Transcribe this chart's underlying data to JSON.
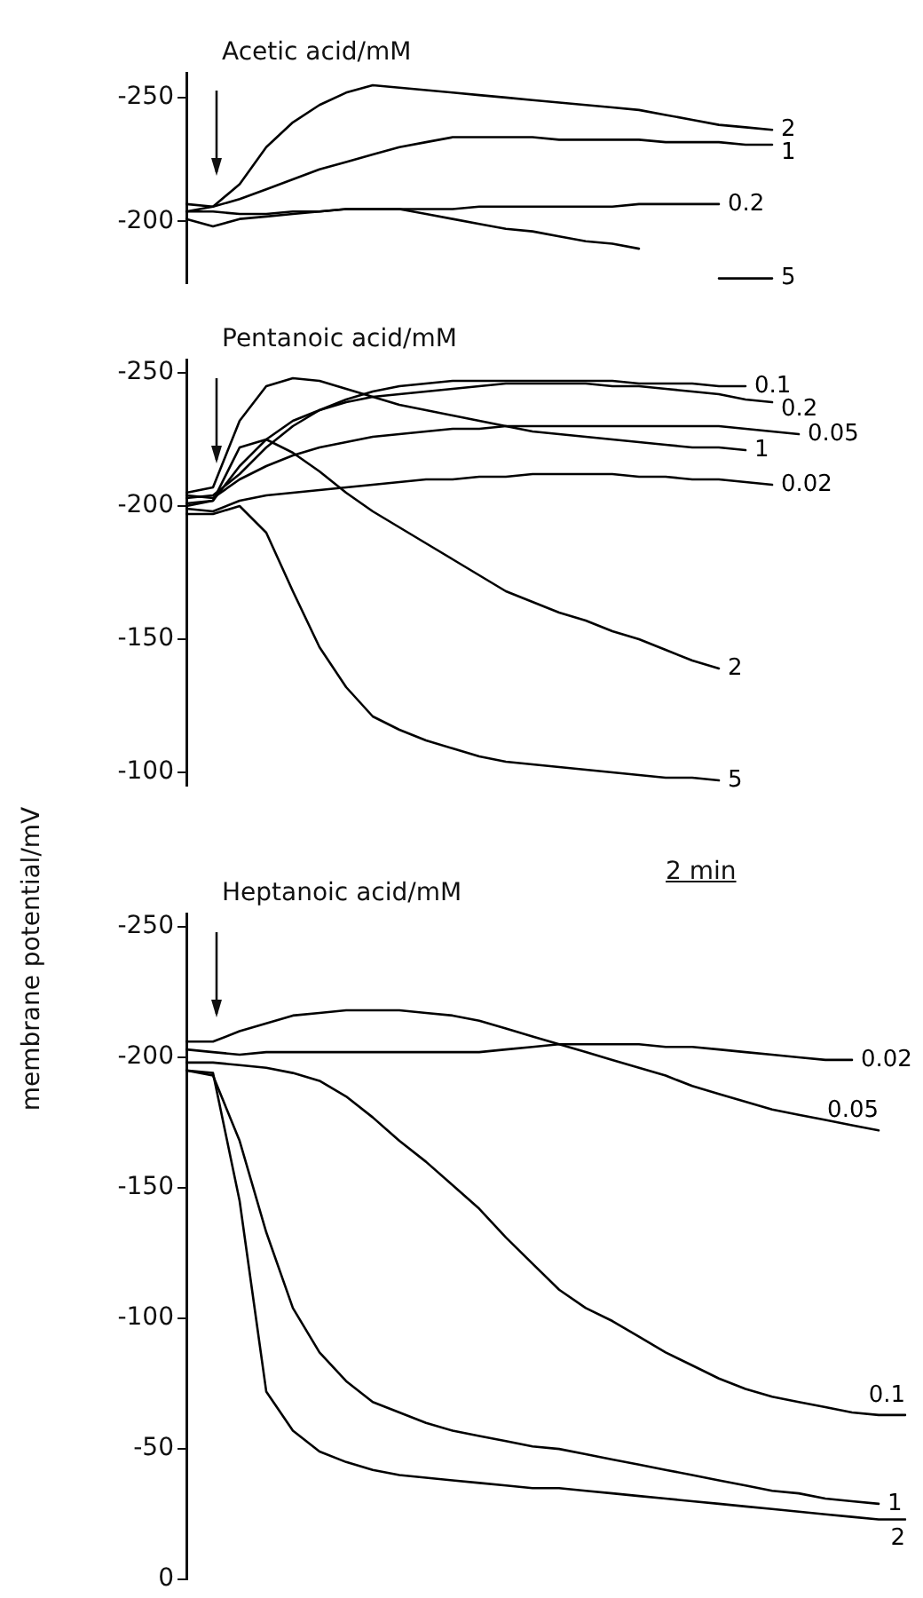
{
  "chart_data": [
    {
      "type": "line",
      "title": "Acetic acid/mM",
      "categories": [
        null,
        null,
        null,
        null,
        null,
        null,
        null,
        null,
        null,
        null,
        null,
        null,
        null,
        null,
        null,
        null,
        null,
        null,
        null,
        null,
        null,
        null,
        null,
        null,
        null,
        null,
        null,
        null
      ],
      "series": [
        {
          "name": "2",
          "color": "#000000",
          "values": [
            -204,
            -206,
            -215,
            -230,
            -240,
            -247,
            -252,
            -255,
            -254,
            -253,
            -252,
            -251,
            -250,
            -249,
            -248,
            -247,
            -246,
            -245,
            -243,
            -241,
            -239,
            -238,
            -237,
            null,
            null,
            null,
            null,
            null
          ]
        },
        {
          "name": "1",
          "color": "#000000",
          "values": [
            -207,
            -206,
            -209,
            -213,
            -217,
            -221,
            -224,
            -227,
            -230,
            -232,
            -234,
            -234,
            -234,
            -234,
            -233,
            -233,
            -233,
            -233,
            -232,
            -232,
            -232,
            -231,
            -231,
            null,
            null,
            null,
            null,
            null
          ]
        },
        {
          "name": "0.2",
          "color": "#000000",
          "values": [
            -204,
            -204,
            -203,
            -203,
            -204,
            -204,
            -205,
            -205,
            -205,
            -205,
            -205,
            -206,
            -206,
            -206,
            -206,
            -206,
            -206,
            -207,
            -207,
            -207,
            -207,
            null,
            null,
            null,
            null,
            null,
            null,
            null
          ]
        },
        {
          "name": "5",
          "color": "#000000",
          "values": [
            -201,
            -198,
            -201,
            -202,
            -203,
            -204,
            -205,
            -205,
            -205,
            -203,
            -201,
            -199,
            -197,
            -196,
            -194,
            -192,
            -191,
            -189,
            null,
            null,
            -177,
            -177,
            -177,
            null,
            null,
            null,
            null,
            null
          ]
        }
      ],
      "ylim": [
        -175,
        -260
      ],
      "yticks": [
        -250,
        -200
      ],
      "tick_labels": "y",
      "grid": false,
      "marker": "none"
    },
    {
      "type": "line",
      "title": "Pentanoic acid/mM",
      "ylabel": "membrane potential/mV",
      "annotations": [
        "2 min"
      ],
      "categories": [
        null,
        null,
        null,
        null,
        null,
        null,
        null,
        null,
        null,
        null,
        null,
        null,
        null,
        null,
        null,
        null,
        null,
        null,
        null,
        null,
        null,
        null,
        null,
        null,
        null,
        null,
        null,
        null
      ],
      "series": [
        {
          "name": "0.1",
          "color": "#000000",
          "values": [
            -203,
            -204,
            -212,
            -222,
            -230,
            -236,
            -240,
            -243,
            -245,
            -246,
            -247,
            -247,
            -247,
            -247,
            -247,
            -247,
            -247,
            -246,
            -246,
            -246,
            -245,
            -245,
            null,
            null,
            null,
            null,
            null,
            null
          ]
        },
        {
          "name": "0.2",
          "color": "#000000",
          "values": [
            -201,
            -202,
            -215,
            -225,
            -232,
            -236,
            -239,
            -241,
            -242,
            -243,
            -244,
            -245,
            -246,
            -246,
            -246,
            -246,
            -245,
            -245,
            -244,
            -243,
            -242,
            -240,
            -239,
            null,
            null,
            null,
            null,
            null
          ]
        },
        {
          "name": "0.05",
          "color": "#000000",
          "values": [
            -204,
            -203,
            -210,
            -215,
            -219,
            -222,
            -224,
            -226,
            -227,
            -228,
            -229,
            -229,
            -230,
            -230,
            -230,
            -230,
            -230,
            -230,
            -230,
            -230,
            -230,
            -229,
            -228,
            -227,
            null,
            null,
            null,
            null
          ]
        },
        {
          "name": "1",
          "color": "#000000",
          "values": [
            -205,
            -207,
            -232,
            -245,
            -248,
            -247,
            -244,
            -241,
            -238,
            -236,
            -234,
            -232,
            -230,
            -228,
            -227,
            -226,
            -225,
            -224,
            -223,
            -222,
            -222,
            -221,
            null,
            null,
            null,
            null,
            null,
            null
          ]
        },
        {
          "name": "0.02",
          "color": "#000000",
          "values": [
            -199,
            -198,
            -202,
            -204,
            -205,
            -206,
            -207,
            -208,
            -209,
            -210,
            -210,
            -211,
            -211,
            -212,
            -212,
            -212,
            -212,
            -211,
            -211,
            -210,
            -210,
            -209,
            -208,
            null,
            null,
            null,
            null,
            null
          ]
        },
        {
          "name": "2",
          "color": "#000000",
          "values": [
            -200,
            -202,
            -222,
            -225,
            -220,
            -213,
            -205,
            -198,
            -192,
            -186,
            -180,
            -174,
            -168,
            -164,
            -160,
            -157,
            -153,
            -150,
            -146,
            -142,
            -139,
            null,
            null,
            null,
            null,
            null,
            null,
            null
          ]
        },
        {
          "name": "5",
          "color": "#000000",
          "values": [
            -197,
            -197,
            -200,
            -190,
            -168,
            -147,
            -132,
            -121,
            -116,
            -112,
            -109,
            -106,
            -104,
            -103,
            -102,
            -101,
            -100,
            -99,
            -98,
            -98,
            -97,
            null,
            null,
            null,
            null,
            null,
            null,
            null
          ]
        }
      ],
      "ylim": [
        -95,
        -255
      ],
      "yticks": [
        -250,
        -200,
        -150,
        -100
      ],
      "tick_labels": "y",
      "grid": false,
      "marker": "none"
    },
    {
      "type": "line",
      "title": "Heptanoic acid/mM",
      "categories": [
        null,
        null,
        null,
        null,
        null,
        null,
        null,
        null,
        null,
        null,
        null,
        null,
        null,
        null,
        null,
        null,
        null,
        null,
        null,
        null,
        null,
        null,
        null,
        null,
        null,
        null,
        null,
        null
      ],
      "series": [
        {
          "name": "0.02",
          "color": "#000000",
          "values": [
            -203,
            -202,
            -201,
            -202,
            -202,
            -202,
            -202,
            -202,
            -202,
            -202,
            -202,
            -202,
            -203,
            -204,
            -205,
            -205,
            -205,
            -205,
            -204,
            -204,
            -203,
            -202,
            -201,
            -200,
            -199,
            -199,
            null,
            null
          ]
        },
        {
          "name": "0.05",
          "color": "#000000",
          "values": [
            -206,
            -206,
            -210,
            -213,
            -216,
            -217,
            -218,
            -218,
            -218,
            -217,
            -216,
            -214,
            -211,
            -208,
            -205,
            -202,
            -199,
            -196,
            -193,
            -189,
            -186,
            -183,
            -180,
            -178,
            -176,
            -174,
            -172,
            null
          ]
        },
        {
          "name": "0.1",
          "color": "#000000",
          "values": [
            -198,
            -198,
            -197,
            -196,
            -194,
            -191,
            -185,
            -177,
            -168,
            -160,
            -151,
            -142,
            -131,
            -121,
            -111,
            -104,
            -99,
            -93,
            -87,
            -82,
            -77,
            -73,
            -70,
            -68,
            -66,
            -64,
            -63,
            -63
          ]
        },
        {
          "name": "1",
          "color": "#000000",
          "values": [
            -195,
            -193,
            -168,
            -133,
            -104,
            -87,
            -76,
            -68,
            -64,
            -60,
            -57,
            -55,
            -53,
            -51,
            -50,
            -48,
            -46,
            -44,
            -42,
            -40,
            -38,
            -36,
            -34,
            -33,
            -31,
            -30,
            -29,
            null
          ]
        },
        {
          "name": "2",
          "color": "#000000",
          "values": [
            -195,
            -194,
            -145,
            -72,
            -57,
            -49,
            -45,
            -42,
            -40,
            -39,
            -38,
            -37,
            -36,
            -35,
            -35,
            -34,
            -33,
            -32,
            -31,
            -30,
            -29,
            -28,
            -27,
            -26,
            -25,
            -24,
            -23,
            -23
          ]
        }
      ],
      "ylim": [
        0,
        -255
      ],
      "yticks": [
        -250,
        -200,
        -150,
        -100,
        -50,
        0
      ],
      "tick_labels": "y",
      "grid": false,
      "marker": "none"
    }
  ]
}
